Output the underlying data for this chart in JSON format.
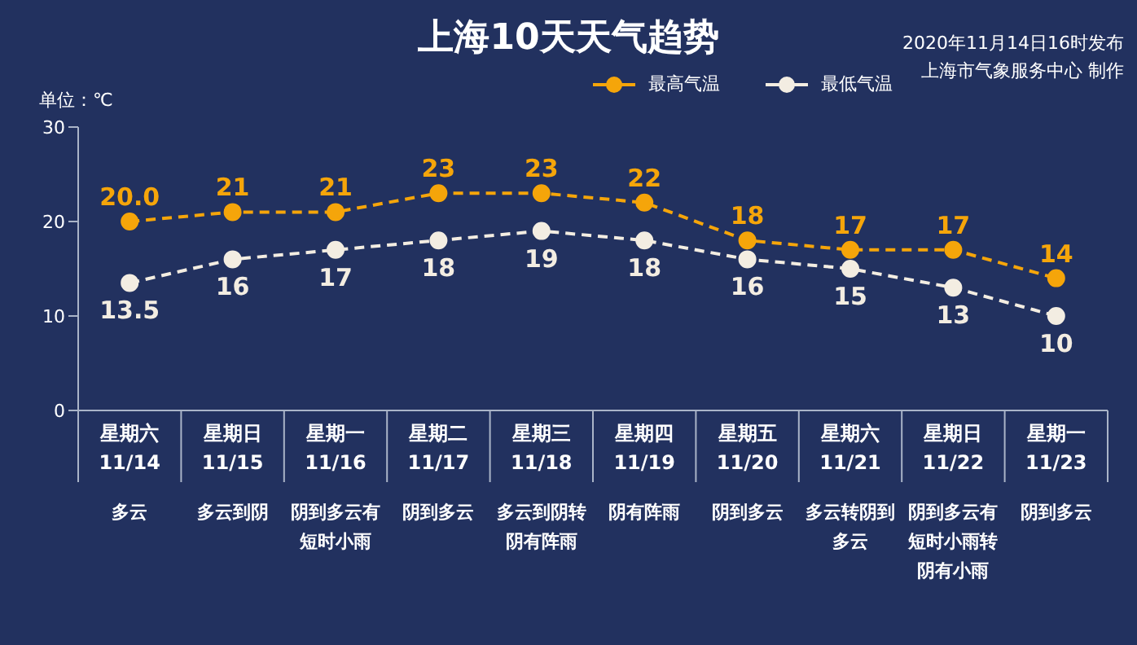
{
  "chart_data": {
    "type": "line",
    "title": "上海10天天气趋势",
    "ylabel": "单位：℃",
    "categories": [
      "星期六 11/14",
      "星期日 11/15",
      "星期一 11/16",
      "星期二 11/17",
      "星期三 11/18",
      "星期四 11/19",
      "星期五 11/20",
      "星期六 11/21",
      "星期日 11/22",
      "星期一 11/23"
    ],
    "series": [
      {
        "name": "最高气温",
        "color": "#f5a50a",
        "values": [
          20,
          21,
          21,
          23,
          23,
          22,
          18,
          17,
          17,
          14
        ],
        "value_labels": [
          "20.0",
          "21",
          "21",
          "23",
          "23",
          "22",
          "18",
          "17",
          "17",
          "14"
        ]
      },
      {
        "name": "最低气温",
        "color": "#f3ede2",
        "values": [
          13.5,
          16,
          17,
          18,
          19,
          18,
          16,
          15,
          13,
          10
        ],
        "value_labels": [
          "13.5",
          "16",
          "17",
          "18",
          "19",
          "18",
          "16",
          "15",
          "13",
          "10"
        ]
      }
    ],
    "ylim": [
      0,
      30
    ],
    "yticks": [
      0,
      10,
      20,
      30
    ],
    "grid": false,
    "legend": "top right",
    "marker": "circle",
    "line_style": "dashed",
    "data_labels": true,
    "annotations": [
      "2020年11月14日16时发布",
      "上海市气象服务中心 制作",
      "多云",
      "多云到阴",
      "阴到多云有短时小雨",
      "阴到多云",
      "多云到阴转阴有阵雨",
      "阴有阵雨",
      "阴到多云",
      "多云转阴到多云",
      "阴到多云有短时小雨转阴有小雨",
      "阴到多云"
    ]
  }
}
